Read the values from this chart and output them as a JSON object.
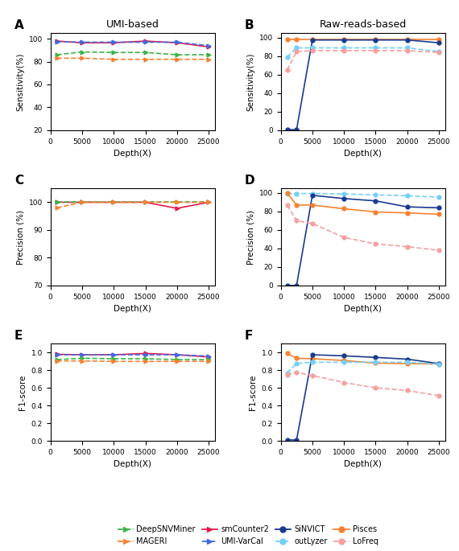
{
  "x_umi": [
    1000,
    5000,
    10000,
    15000,
    20000,
    25000
  ],
  "x_raw": [
    1000,
    2500,
    5000,
    10000,
    15000,
    20000,
    25000
  ],
  "panel_titles_left": "UMI-based",
  "panel_titles_right": "Raw-reads-based",
  "sensitivity_A": {
    "smCounter2": [
      98.0,
      96.5,
      96.5,
      98.0,
      96.5,
      93.0
    ],
    "UMI_VarCal": [
      97.5,
      97.0,
      97.0,
      97.0,
      97.0,
      94.0
    ],
    "DeepSNVMiner": [
      86.0,
      88.5,
      88.0,
      88.0,
      86.0,
      86.0
    ],
    "MAGERI": [
      83.0,
      83.0,
      82.0,
      82.0,
      82.0,
      82.0
    ]
  },
  "sensitivity_B": {
    "SiNVICT": [
      0.5,
      0.5,
      97.5,
      97.5,
      97.5,
      97.5,
      94.5
    ],
    "outLyzer": [
      79.0,
      89.0,
      89.0,
      89.0,
      89.0,
      89.0,
      85.0
    ],
    "Pisces": [
      98.0,
      98.0,
      98.0,
      98.0,
      98.0,
      98.0,
      98.0
    ],
    "LoFreq": [
      65.0,
      85.0,
      86.0,
      86.0,
      86.0,
      86.0,
      84.0
    ]
  },
  "precision_C": {
    "smCounter2": [
      100.0,
      100.0,
      100.0,
      100.0,
      97.8,
      100.0
    ],
    "DeepSNVMiner": [
      100.0,
      100.0,
      100.0,
      100.0,
      100.0,
      100.0
    ],
    "MAGERI": [
      98.0,
      100.0,
      100.0,
      100.0,
      100.0,
      100.0
    ]
  },
  "precision_D": {
    "SiNVICT": [
      0.0,
      0.0,
      97.5,
      94.0,
      91.5,
      85.0,
      84.0
    ],
    "outLyzer": [
      99.5,
      99.5,
      99.5,
      99.0,
      98.0,
      97.0,
      95.5
    ],
    "Pisces": [
      100.0,
      87.0,
      87.0,
      83.0,
      79.5,
      78.5,
      77.0
    ],
    "LoFreq": [
      87.0,
      70.0,
      67.0,
      52.0,
      45.0,
      42.0,
      38.0
    ]
  },
  "f1_E": {
    "smCounter2": [
      0.98,
      0.975,
      0.975,
      0.99,
      0.975,
      0.95
    ],
    "UMI_VarCal": [
      0.975,
      0.975,
      0.975,
      0.975,
      0.975,
      0.96
    ],
    "DeepSNVMiner": [
      0.92,
      0.935,
      0.93,
      0.93,
      0.92,
      0.92
    ],
    "MAGERI": [
      0.905,
      0.905,
      0.9,
      0.9,
      0.9,
      0.9
    ]
  },
  "f1_F": {
    "SiNVICT": [
      0.01,
      0.01,
      0.975,
      0.963,
      0.945,
      0.925,
      0.875
    ],
    "outLyzer": [
      0.77,
      0.875,
      0.89,
      0.89,
      0.89,
      0.89,
      0.87
    ],
    "Pisces": [
      0.99,
      0.935,
      0.93,
      0.91,
      0.88,
      0.875,
      0.87
    ],
    "LoFreq": [
      0.75,
      0.775,
      0.74,
      0.66,
      0.6,
      0.57,
      0.51
    ]
  },
  "colors": {
    "DeepSNVMiner": "#3cb44b",
    "MAGERI": "#f58231",
    "smCounter2": "#e6194b",
    "UMI_VarCal": "#4169e1",
    "SiNVICT": "#1a3a8f",
    "outLyzer": "#74d0f7",
    "Pisces": "#f58231",
    "LoFreq": "#f4a0a0"
  },
  "legend_entries_row1": [
    {
      "label": "DeepSNVMiner",
      "color": "#3cb44b",
      "linestyle": "dashed",
      "marker": ">"
    },
    {
      "label": "MAGERI",
      "color": "#f58231",
      "linestyle": "dashed",
      "marker": ">"
    },
    {
      "label": "smCounter2",
      "color": "#e6194b",
      "linestyle": "solid",
      "marker": ">"
    },
    {
      "label": "UMI-VarCal",
      "color": "#4169e1",
      "linestyle": "dashed",
      "marker": ">"
    }
  ],
  "legend_entries_row2": [
    {
      "label": "SiNVICT",
      "color": "#1a3a8f",
      "linestyle": "solid",
      "marker": "o"
    },
    {
      "label": "outLyzer",
      "color": "#74d0f7",
      "linestyle": "dashed",
      "marker": "o"
    },
    {
      "label": "Pisces",
      "color": "#f58231",
      "linestyle": "solid",
      "marker": "o"
    },
    {
      "label": "LoFreq",
      "color": "#f4a0a0",
      "linestyle": "dashed",
      "marker": "o"
    }
  ]
}
